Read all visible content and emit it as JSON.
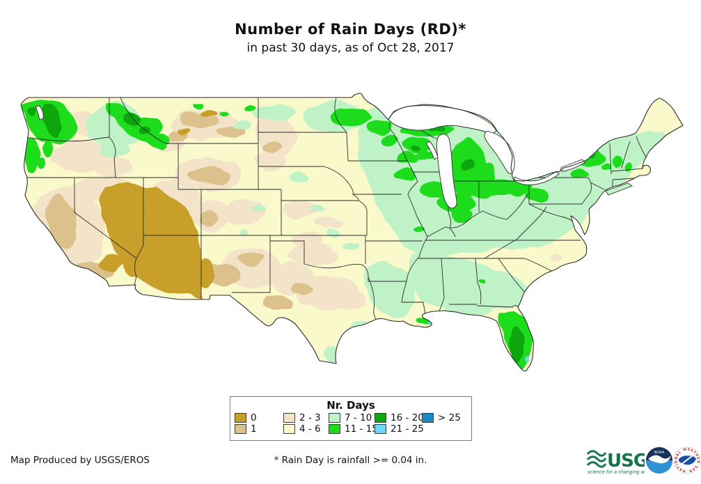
{
  "title": "Number of Rain Days (RD)*",
  "subtitle": "in past 30 days, as of Oct 28, 2017",
  "legend": {
    "title": "Nr. Days",
    "items": [
      {
        "label": "0",
        "color": "#C79F2A"
      },
      {
        "label": "1",
        "color": "#DCC18D"
      },
      {
        "label": "2 - 3",
        "color": "#F2E3C9"
      },
      {
        "label": "4 - 6",
        "color": "#FAF9CC"
      },
      {
        "label": "7 - 10",
        "color": "#BFF2C6"
      },
      {
        "label": "11 - 15",
        "color": "#1CDC1C"
      },
      {
        "label": "16 - 20",
        "color": "#0EA70E"
      },
      {
        "label": "21 - 25",
        "color": "#69D9F8"
      },
      {
        "label": "> 25",
        "color": "#1E88C9"
      }
    ]
  },
  "map": {
    "water_color": "#FFFFFF",
    "border_color": "#2b2b2b"
  },
  "footer": {
    "credit": "Map Produced by USGS/EROS",
    "note": "* Rain Day is rainfall >= 0.04 in."
  },
  "logos": {
    "usgs": {
      "text": "USGS",
      "tagline": "science for a changing world",
      "color": "#157449"
    },
    "noaa": {
      "text": "NOAA",
      "dark": "#16325C",
      "light": "#2E93D4"
    },
    "nws": {
      "ring_text": "NATIONAL WEATHER SERVICE",
      "ring_color": "#CC2222",
      "center_color": "#1B4FA0"
    }
  }
}
